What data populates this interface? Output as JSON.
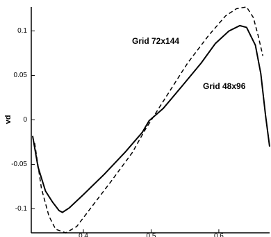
{
  "chart_data": {
    "type": "line",
    "y_label": "vd",
    "xlim": [
      0.323,
      0.675
    ],
    "ylim": [
      -0.127,
      0.127
    ],
    "xticks": [
      0.4,
      0.5,
      0.6
    ],
    "yticks": [
      0.1,
      0.05,
      0,
      -0.05,
      -0.1
    ],
    "series": [
      {
        "name": "Grid 48x96",
        "color": "#000000",
        "dash": "solid",
        "x": [
          0.325,
          0.333,
          0.344,
          0.354,
          0.364,
          0.369,
          0.379,
          0.4,
          0.431,
          0.462,
          0.487,
          0.497,
          0.518,
          0.549,
          0.574,
          0.595,
          0.615,
          0.631,
          0.641,
          0.654,
          0.662,
          0.669,
          0.675
        ],
        "values": [
          -0.018,
          -0.053,
          -0.08,
          -0.092,
          -0.102,
          -0.104,
          -0.099,
          -0.084,
          -0.061,
          -0.036,
          -0.014,
          -0.001,
          0.013,
          0.041,
          0.064,
          0.086,
          0.1,
          0.106,
          0.104,
          0.084,
          0.052,
          0.005,
          -0.03
        ]
      },
      {
        "name": "Grid 72x144",
        "color": "#000000",
        "dash": "dashed",
        "x": [
          0.328,
          0.338,
          0.349,
          0.359,
          0.374,
          0.39,
          0.41,
          0.441,
          0.472,
          0.492,
          0.503,
          0.528,
          0.554,
          0.585,
          0.61,
          0.626,
          0.641,
          0.651,
          0.658,
          0.665
        ],
        "values": [
          -0.026,
          -0.077,
          -0.108,
          -0.123,
          -0.127,
          -0.12,
          -0.1,
          -0.069,
          -0.037,
          -0.01,
          0.003,
          0.033,
          0.064,
          0.095,
          0.117,
          0.125,
          0.127,
          0.115,
          0.095,
          0.072
        ]
      }
    ]
  }
}
